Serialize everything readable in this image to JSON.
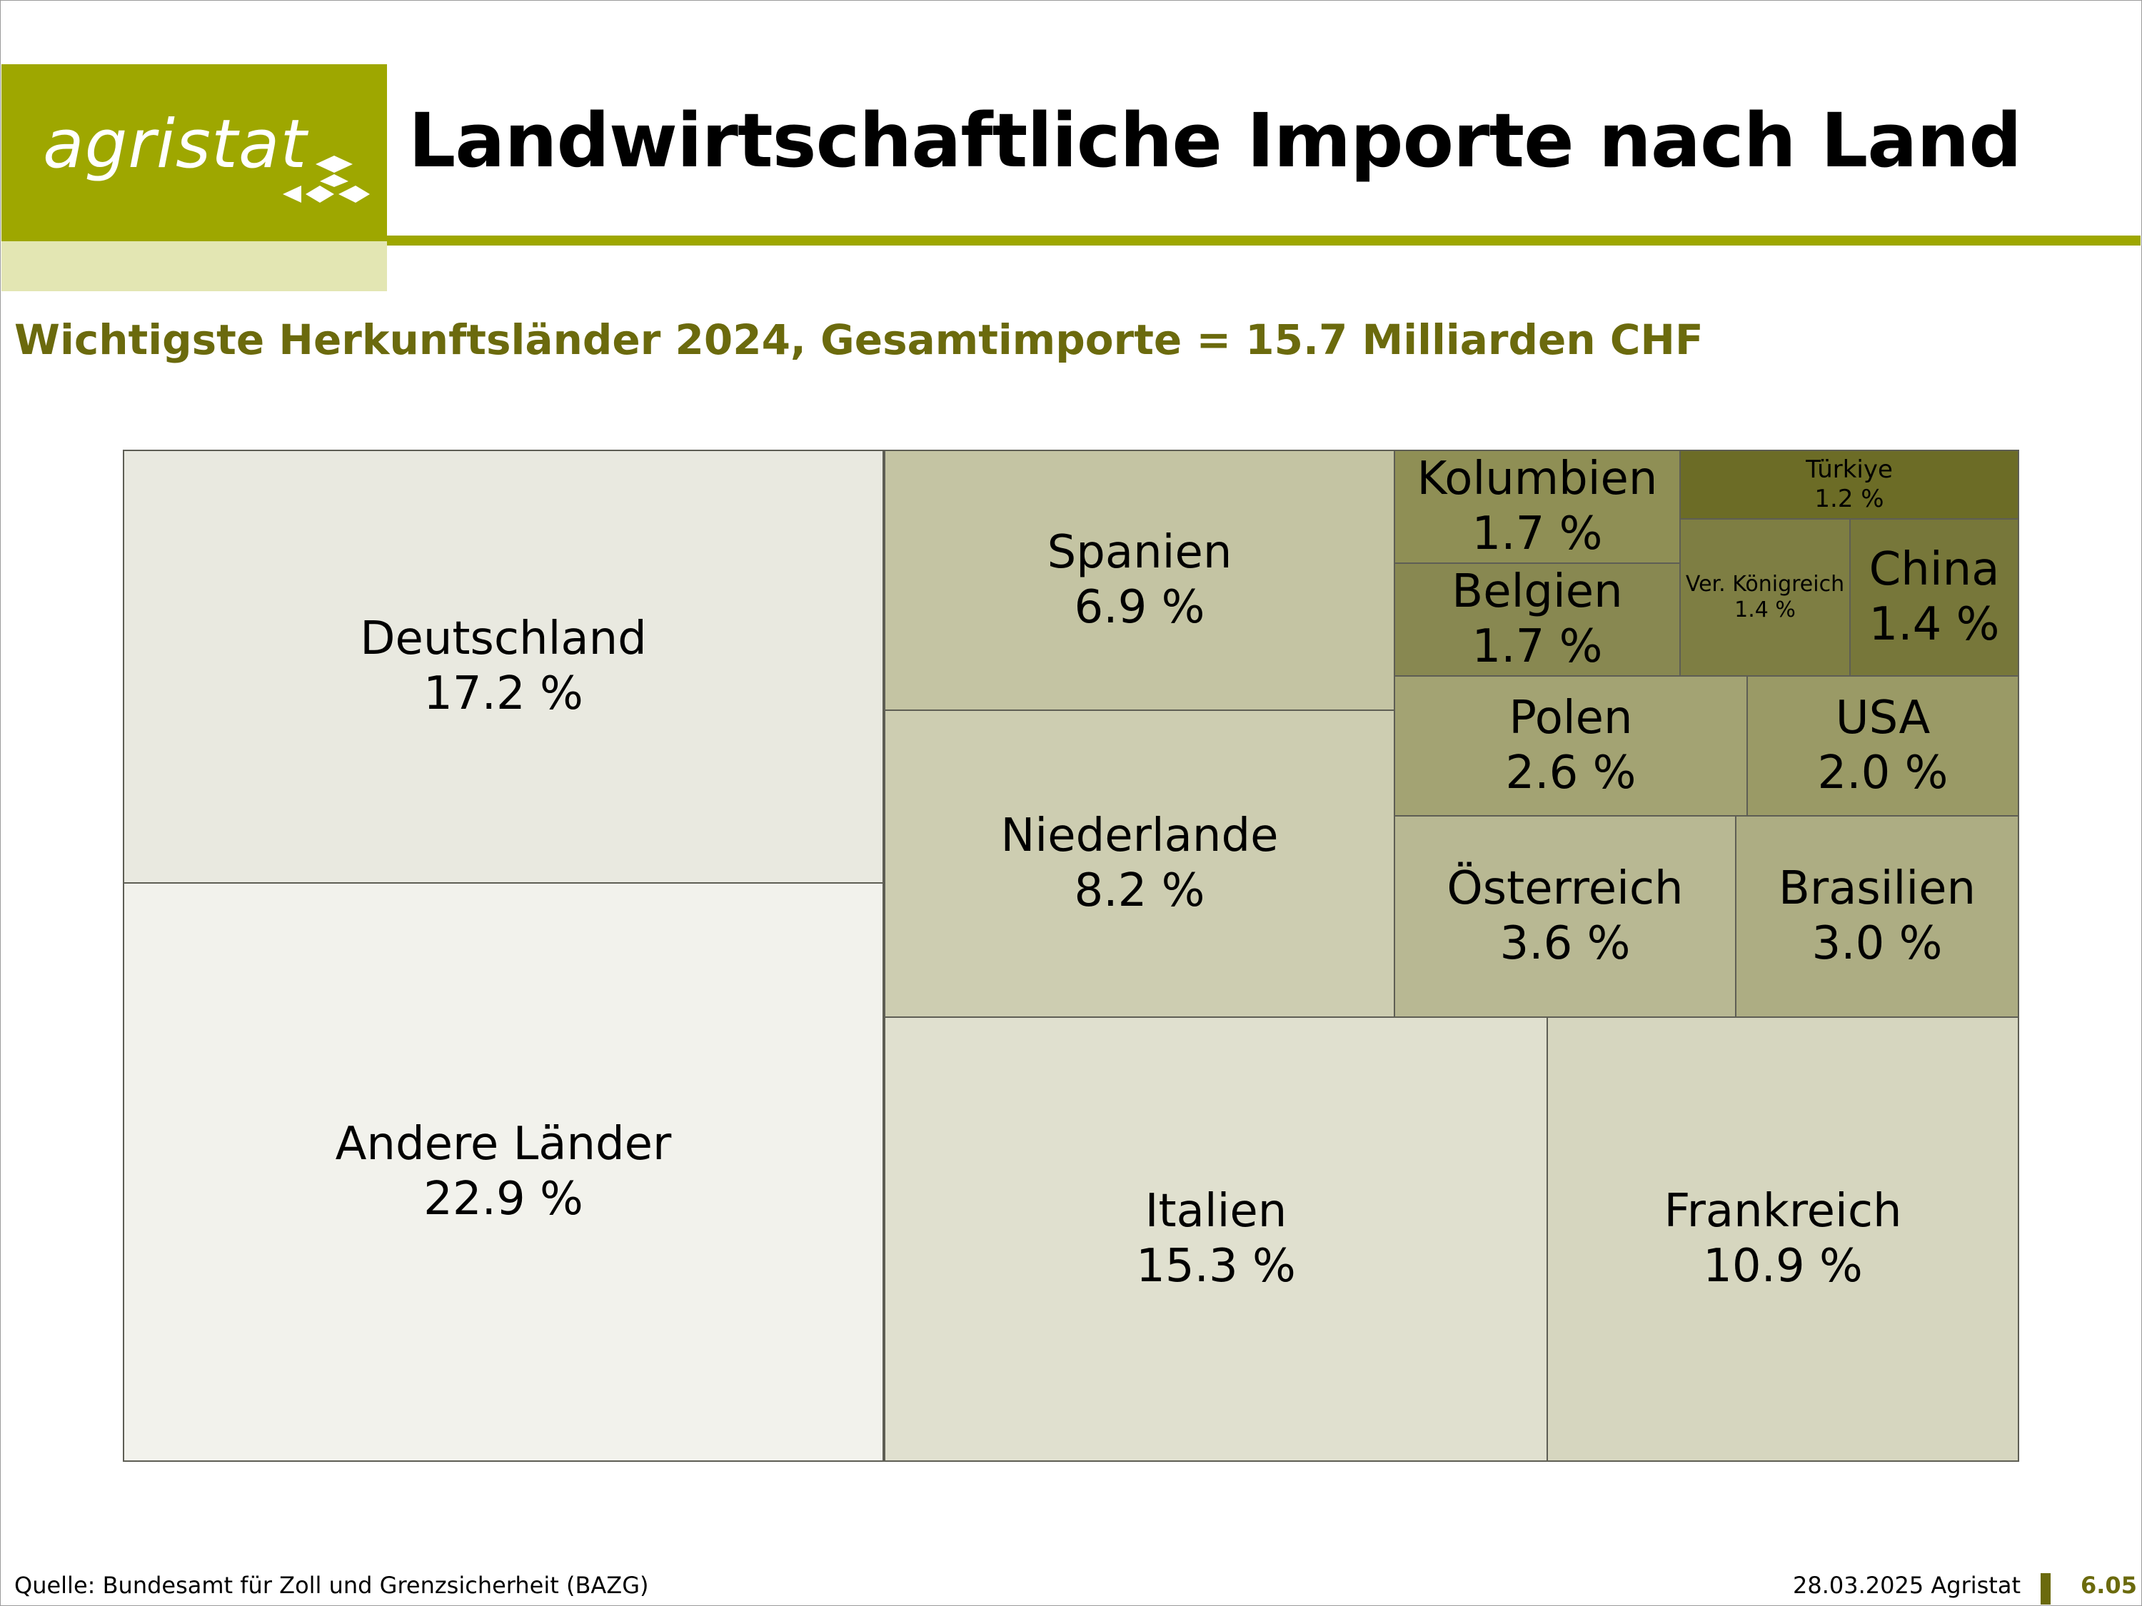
{
  "header": {
    "logo_text": "agristat",
    "title": "Landwirtschaftliche Importe nach Land",
    "subtitle": "Wichtigste Herkunftsländer 2024, Gesamtimporte = 15.7 Milliarden CHF"
  },
  "footer": {
    "source": "Quelle: Bundesamt für Zoll und Grenzsicherheit (BAZG)",
    "date": "28.03.2025 Agristat",
    "page": "6.05"
  },
  "chart_data": {
    "type": "treemap",
    "title": "Wichtigste Herkunftsländer 2024, Gesamtimporte = 15.7 Milliarden CHF",
    "unit": "%",
    "total": "15.7 Milliarden CHF",
    "items": [
      {
        "key": "andere",
        "name": "Andere Länder",
        "value": 22.9,
        "label": "22.9 %",
        "color": "#f2f2ec"
      },
      {
        "key": "deutschland",
        "name": "Deutschland",
        "value": 17.2,
        "label": "17.2 %",
        "color": "#e9e9e0"
      },
      {
        "key": "italien",
        "name": "Italien",
        "value": 15.3,
        "label": "15.3 %",
        "color": "#e0e0cf"
      },
      {
        "key": "frankreich",
        "name": "Frankreich",
        "value": 10.9,
        "label": "10.9 %",
        "color": "#d6d6bf"
      },
      {
        "key": "niederlande",
        "name": "Niederlande",
        "value": 8.2,
        "label": "8.2 %",
        "color": "#cdcdb1"
      },
      {
        "key": "spanien",
        "name": "Spanien",
        "value": 6.9,
        "label": "6.9 %",
        "color": "#c4c4a3"
      },
      {
        "key": "oesterreich",
        "name": "Österreich",
        "value": 3.6,
        "label": "3.6 %",
        "color": "#b8b893"
      },
      {
        "key": "brasilien",
        "name": "Brasilien",
        "value": 3.0,
        "label": "3.0 %",
        "color": "#adad83"
      },
      {
        "key": "polen",
        "name": "Polen",
        "value": 2.6,
        "label": "2.6 %",
        "color": "#a3a373"
      },
      {
        "key": "usa",
        "name": "USA",
        "value": 2.0,
        "label": "2.0 %",
        "color": "#9a9a66"
      },
      {
        "key": "kolumbien",
        "name": "Kolumbien",
        "value": 1.7,
        "label": "1.7 %",
        "color": "#8f8f55"
      },
      {
        "key": "belgien",
        "name": "Belgien",
        "value": 1.7,
        "label": "1.7 %",
        "color": "#888851"
      },
      {
        "key": "vk",
        "name": "Ver. Königreich",
        "value": 1.4,
        "label": "1.4 %",
        "color": "#7e7e43"
      },
      {
        "key": "china",
        "name": "China",
        "value": 1.4,
        "label": "1.4 %",
        "color": "#77773a"
      },
      {
        "key": "tuerkiye",
        "name": "Türkiye",
        "value": 1.2,
        "label": "1.2 %",
        "color": "#6c6c26"
      }
    ]
  }
}
